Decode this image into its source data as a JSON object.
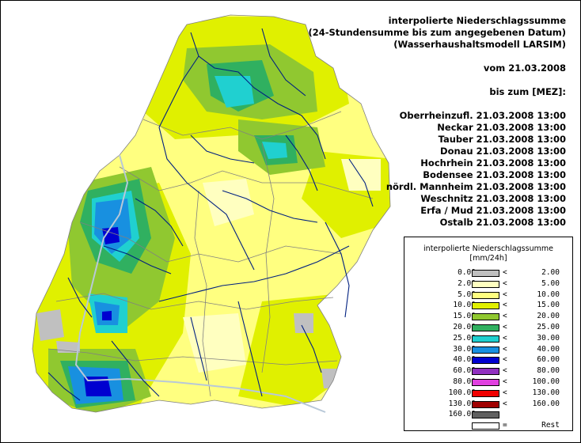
{
  "header": {
    "line1": "interpolierte Niederschlagssumme",
    "line2": "(24-Stundensumme bis zum angegebenen Datum)",
    "line3": "(Wasserhaushaltsmodell LARSIM)",
    "vom": "vom 21.03.2008",
    "bis": "bis zum [MEZ]:"
  },
  "regions": [
    {
      "name": "Oberrheinzufl.",
      "time": "21.03.2008 13:00"
    },
    {
      "name": "Neckar",
      "time": "21.03.2008 13:00"
    },
    {
      "name": "Tauber",
      "time": "21.03.2008 13:00"
    },
    {
      "name": "Donau",
      "time": "21.03.2008 13:00"
    },
    {
      "name": "Hochrhein",
      "time": "21.03.2008 13:00"
    },
    {
      "name": "Bodensee",
      "time": "21.03.2008 13:00"
    },
    {
      "name": "nördl. Mannheim",
      "time": "21.03.2008 13:00"
    },
    {
      "name": "Weschnitz",
      "time": "21.03.2008 13:00"
    },
    {
      "name": "Erfa / Mud",
      "time": "21.03.2008 13:00"
    },
    {
      "name": "Ostalb",
      "time": "21.03.2008 13:00"
    }
  ],
  "legend": {
    "title": "interpolierte Niederschlagssumme",
    "unit": "[mm/24h]",
    "rows": [
      {
        "from": "0.00",
        "op1": "<=",
        "op2": "<",
        "to": "2.00",
        "color": "#c0c0c0"
      },
      {
        "from": "2.00",
        "op1": "<=",
        "op2": "<",
        "to": "5.00",
        "color": "#ffffc0"
      },
      {
        "from": "5.00",
        "op1": "<=",
        "op2": "<",
        "to": "10.00",
        "color": "#ffff80"
      },
      {
        "from": "10.00",
        "op1": "<=",
        "op2": "<",
        "to": "15.00",
        "color": "#e0f000"
      },
      {
        "from": "15.00",
        "op1": "<=",
        "op2": "<",
        "to": "20.00",
        "color": "#90c830"
      },
      {
        "from": "20.00",
        "op1": "<=",
        "op2": "<",
        "to": "25.00",
        "color": "#30b060"
      },
      {
        "from": "25.00",
        "op1": "<=",
        "op2": "<",
        "to": "30.00",
        "color": "#20d0d0"
      },
      {
        "from": "30.00",
        "op1": "<=",
        "op2": "<",
        "to": "40.00",
        "color": "#1890e0"
      },
      {
        "from": "40.00",
        "op1": "<=",
        "op2": "<",
        "to": "60.00",
        "color": "#0000d0"
      },
      {
        "from": "60.00",
        "op1": "<=",
        "op2": "<",
        "to": "80.00",
        "color": "#9030c0"
      },
      {
        "from": "80.00",
        "op1": "<=",
        "op2": "<",
        "to": "100.00",
        "color": "#e040e0"
      },
      {
        "from": "100.00",
        "op1": "<=",
        "op2": "<",
        "to": "130.00",
        "color": "#f00000"
      },
      {
        "from": "130.00",
        "op1": "<=",
        "op2": "<",
        "to": "160.00",
        "color": "#a00000"
      },
      {
        "from": "160.00",
        "op1": "<=",
        "op2": "",
        "to": "",
        "color": "#606060"
      },
      {
        "from": "",
        "op1": "",
        "op2": "=",
        "to": "Rest",
        "color": "#ffffff"
      }
    ]
  },
  "map_colors": {
    "outline": "#808080",
    "river": "#002080",
    "rhine": "#b8c8d8"
  }
}
